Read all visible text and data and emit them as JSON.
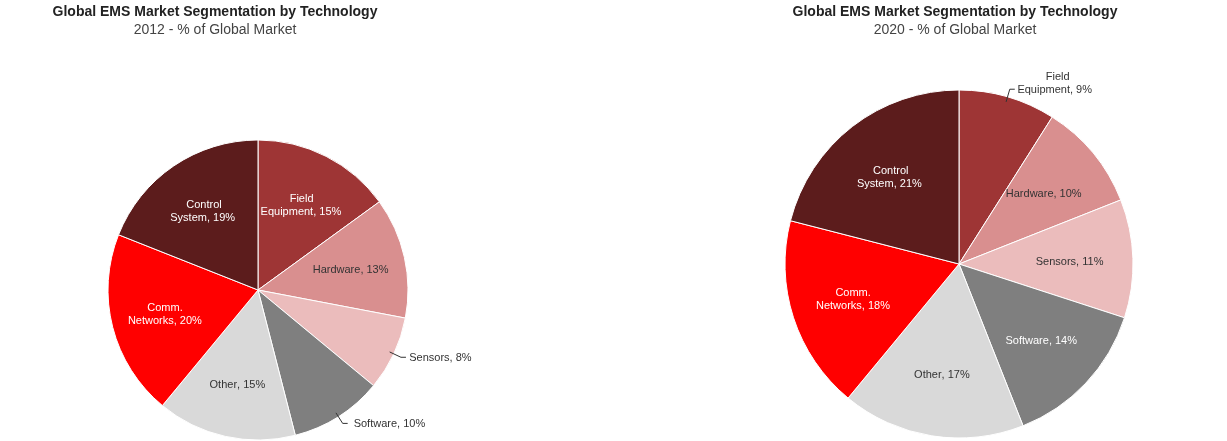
{
  "chart_data": [
    {
      "type": "pie",
      "title": "Global EMS Market Segmentation by Technology",
      "subtitle": "2012 - % of Global Market",
      "categories": [
        "Field Equipment",
        "Hardware",
        "Sensors",
        "Software",
        "Other",
        "Comm. Networks",
        "Control System"
      ],
      "values": [
        15,
        13,
        8,
        10,
        15,
        20,
        19
      ],
      "value_labels": [
        ", 15%",
        ", 13%",
        ", 8%",
        ", 10%",
        ", 15%",
        ", 20%",
        ", 19%"
      ],
      "colors": [
        "#9e3535",
        "#d98f8f",
        "#ebbcbc",
        "#7f7f7f",
        "#d9d9d9",
        "#ff0000",
        "#5c1c1c"
      ]
    },
    {
      "type": "pie",
      "title": "Global EMS Market Segmentation by Technology",
      "subtitle": "2020 - % of Global Market",
      "categories": [
        "Field Equipment",
        "Hardware",
        "Sensors",
        "Software",
        "Other",
        "Comm. Networks",
        "Control System"
      ],
      "values": [
        9,
        10,
        11,
        14,
        17,
        18,
        21
      ],
      "value_labels": [
        ", 9%",
        ", 10%",
        ", 11%",
        ", 14%",
        ", 17%",
        ", 18%",
        ", 21%"
      ],
      "colors": [
        "#9e3535",
        "#d98f8f",
        "#ebbcbc",
        "#7f7f7f",
        "#d9d9d9",
        "#ff0000",
        "#5c1c1c"
      ]
    }
  ]
}
